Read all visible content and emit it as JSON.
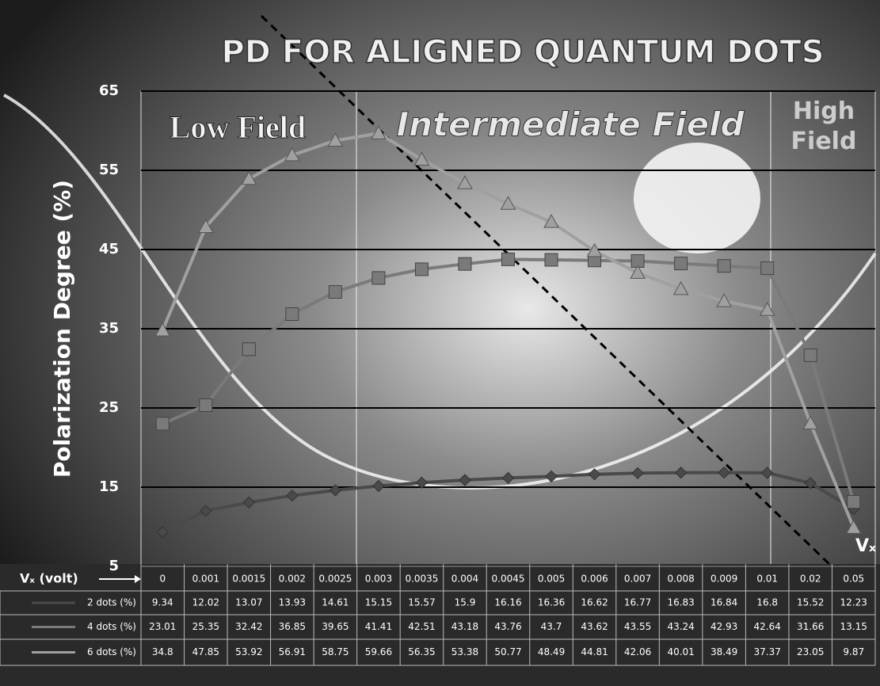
{
  "chart_data": {
    "type": "line",
    "title": "PD FOR ALIGNED QUANTUM DOTS",
    "y_label": "Polarization Degree (%)",
    "x_label": "Vₓ (volt)",
    "x_end_label": "Vₓ",
    "regions": [
      "Low Field",
      "Intermediate Field",
      "High Field"
    ],
    "categories": [
      "0",
      "0.001",
      "0.0015",
      "0.002",
      "0.0025",
      "0.003",
      "0.0035",
      "0.004",
      "0.0045",
      "0.005",
      "0.006",
      "0.007",
      "0.008",
      "0.009",
      "0.01",
      "0.02",
      "0.05"
    ],
    "series": [
      {
        "name": "2 dots (%)",
        "color": "#4a4a4a",
        "marker": "diamond",
        "values": [
          9.34,
          12.02,
          13.07,
          13.93,
          14.61,
          15.15,
          15.57,
          15.9,
          16.16,
          16.36,
          16.62,
          16.77,
          16.83,
          16.84,
          16.8,
          15.52,
          12.23
        ]
      },
      {
        "name": "4 dots (%)",
        "color": "#7a7a7a",
        "marker": "square",
        "values": [
          23.01,
          25.35,
          32.42,
          36.85,
          39.65,
          41.41,
          42.51,
          43.18,
          43.76,
          43.7,
          43.62,
          43.55,
          43.24,
          42.93,
          42.64,
          31.66,
          13.15
        ]
      },
      {
        "name": "6 dots (%)",
        "color": "#a0a0a0",
        "marker": "triangle",
        "values": [
          34.8,
          47.85,
          53.92,
          56.91,
          58.75,
          59.66,
          56.35,
          53.38,
          50.77,
          48.49,
          44.81,
          42.06,
          40.01,
          38.49,
          37.37,
          23.05,
          9.87
        ]
      }
    ],
    "ylim": [
      5,
      65
    ],
    "yticks": [
      5,
      15,
      25,
      35,
      45,
      55,
      65
    ],
    "grid": true
  }
}
